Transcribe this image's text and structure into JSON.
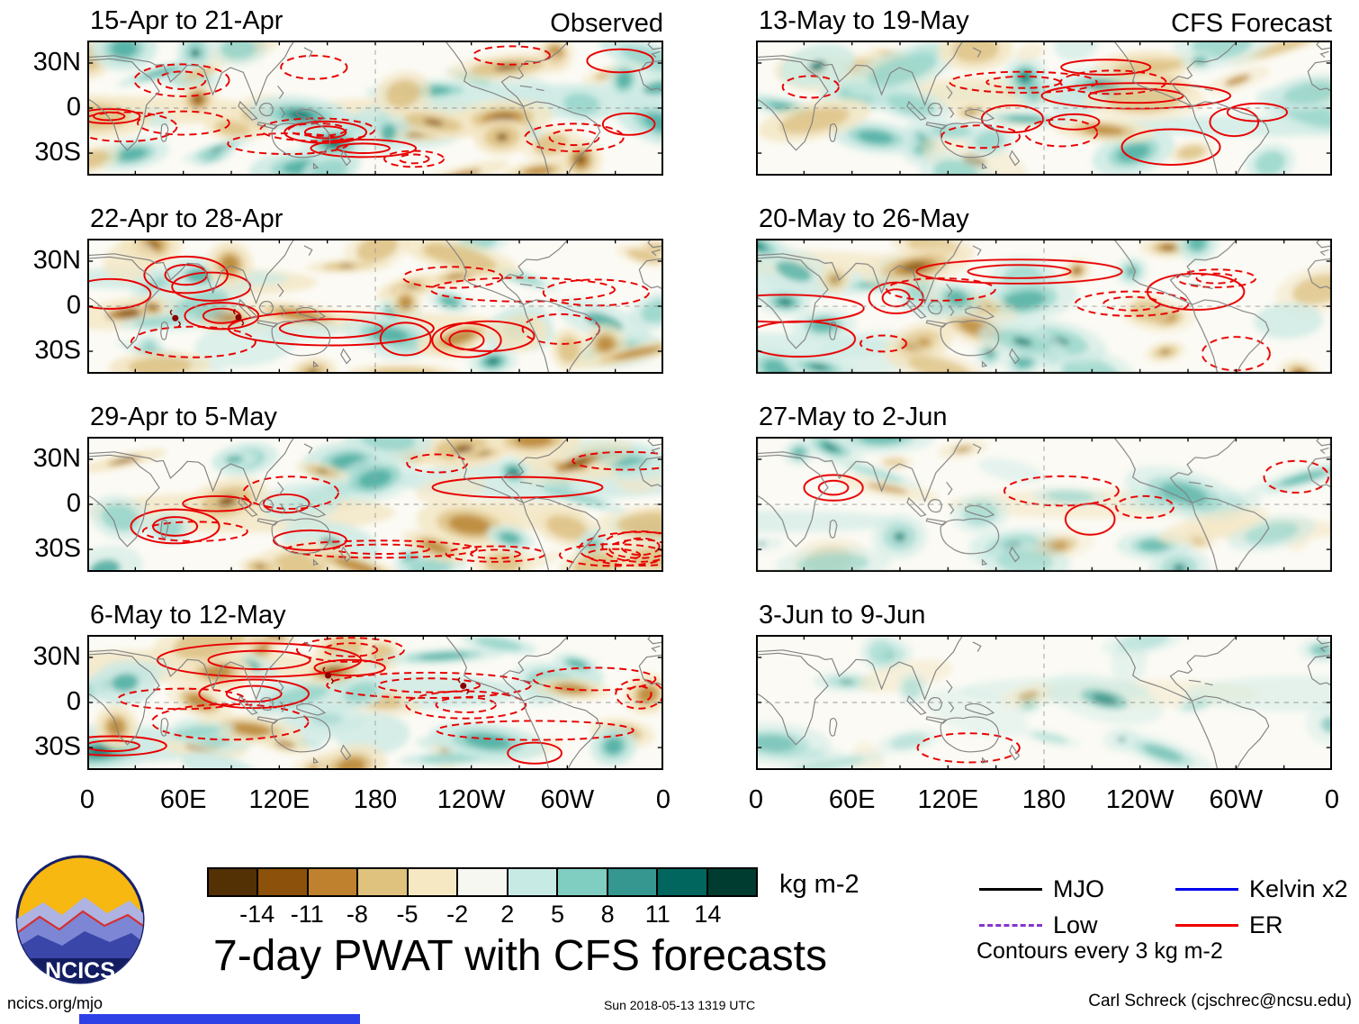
{
  "figure": {
    "observed_label": "Observed",
    "forecast_label": "CFS Forecast",
    "main_title": "7-day PWAT with CFS forecasts",
    "logo_text": "NCICS"
  },
  "panels": {
    "left": [
      {
        "title": "15-Apr to 21-Apr"
      },
      {
        "title": "22-Apr to 28-Apr"
      },
      {
        "title": "29-Apr to 5-May"
      },
      {
        "title": "6-May to 12-May"
      }
    ],
    "right": [
      {
        "title": "13-May to 19-May"
      },
      {
        "title": "20-May to 26-May"
      },
      {
        "title": "27-May to 2-Jun"
      },
      {
        "title": "3-Jun to 9-Jun"
      }
    ]
  },
  "axes": {
    "lat_ticks": [
      "30N",
      "0",
      "30S"
    ],
    "lon_ticks": [
      "0",
      "60E",
      "120E",
      "180",
      "120W",
      "60W",
      "0"
    ]
  },
  "colorbar": {
    "units": "kg m-2",
    "tick_labels": [
      "-14",
      "-11",
      "-8",
      "-5",
      "-2",
      "2",
      "5",
      "8",
      "11",
      "14"
    ],
    "colors": [
      "#543005",
      "#8c510a",
      "#bf812d",
      "#dfc27d",
      "#f6e8c3",
      "#f7f7f2",
      "#c7eae5",
      "#80cdc1",
      "#35978f",
      "#01665e",
      "#003c30"
    ]
  },
  "legend": {
    "items": [
      {
        "label": "MJO",
        "color": "#000000",
        "style": "solid"
      },
      {
        "label": "Kelvin x2",
        "color": "#0000ee",
        "style": "solid"
      },
      {
        "label": "Low",
        "color": "#8a33cc",
        "style": "dashed"
      },
      {
        "label": "ER",
        "color": "#ee0000",
        "style": "solid"
      }
    ],
    "note": "Contours every 3 kg m-2"
  },
  "footer": {
    "left": "ncics.org/mjo",
    "center": "Sun 2018-05-13 1319 UTC",
    "right": "Carl Schreck (cjschrec@ncsu.edu)"
  },
  "chart_data": {
    "type": "heatmap",
    "title": "7-day PWAT with CFS forecasts",
    "variable": "7-day precipitable water (PWAT) anomalies with equatorial wave contours",
    "units": "kg m-2",
    "shading_level_boundaries": [
      -14,
      -11,
      -8,
      -5,
      -2,
      2,
      5,
      8,
      11,
      14
    ],
    "shading_colors": [
      "#543005",
      "#8c510a",
      "#bf812d",
      "#dfc27d",
      "#f6e8c3",
      "#f7f7f2",
      "#c7eae5",
      "#80cdc1",
      "#35978f",
      "#01665e",
      "#003c30"
    ],
    "contour_note": "Contours every 3 kg m-2",
    "lon_axis": {
      "ticks": [
        "0",
        "60E",
        "120E",
        "180",
        "120W",
        "60W",
        "0"
      ],
      "range_deg": [
        0,
        360
      ]
    },
    "lat_axis": {
      "ticks": [
        "30N",
        "0",
        "30S"
      ]
    },
    "columns": [
      {
        "label": "Observed",
        "panels": [
          "15-Apr to 21-Apr",
          "22-Apr to 28-Apr",
          "29-Apr to 5-May",
          "6-May to 12-May"
        ]
      },
      {
        "label": "CFS Forecast",
        "panels": [
          "13-May to 19-May",
          "20-May to 26-May",
          "27-May to 2-Jun",
          "3-Jun to 9-Jun"
        ]
      }
    ],
    "wave_overlays": [
      "MJO",
      "Low",
      "Kelvin x2",
      "ER"
    ],
    "notes": "Filled tan/brown shading = dry anomalies, teal/green shading = moist anomalies; red solid/dashed ER wave contours overlaid; forecast anomalies weaken in later weeks; small dark-red tropical-cyclone symbols appear in some observed panels.",
    "legend_position": "bottom-right",
    "colorbar_position": "bottom-left"
  }
}
